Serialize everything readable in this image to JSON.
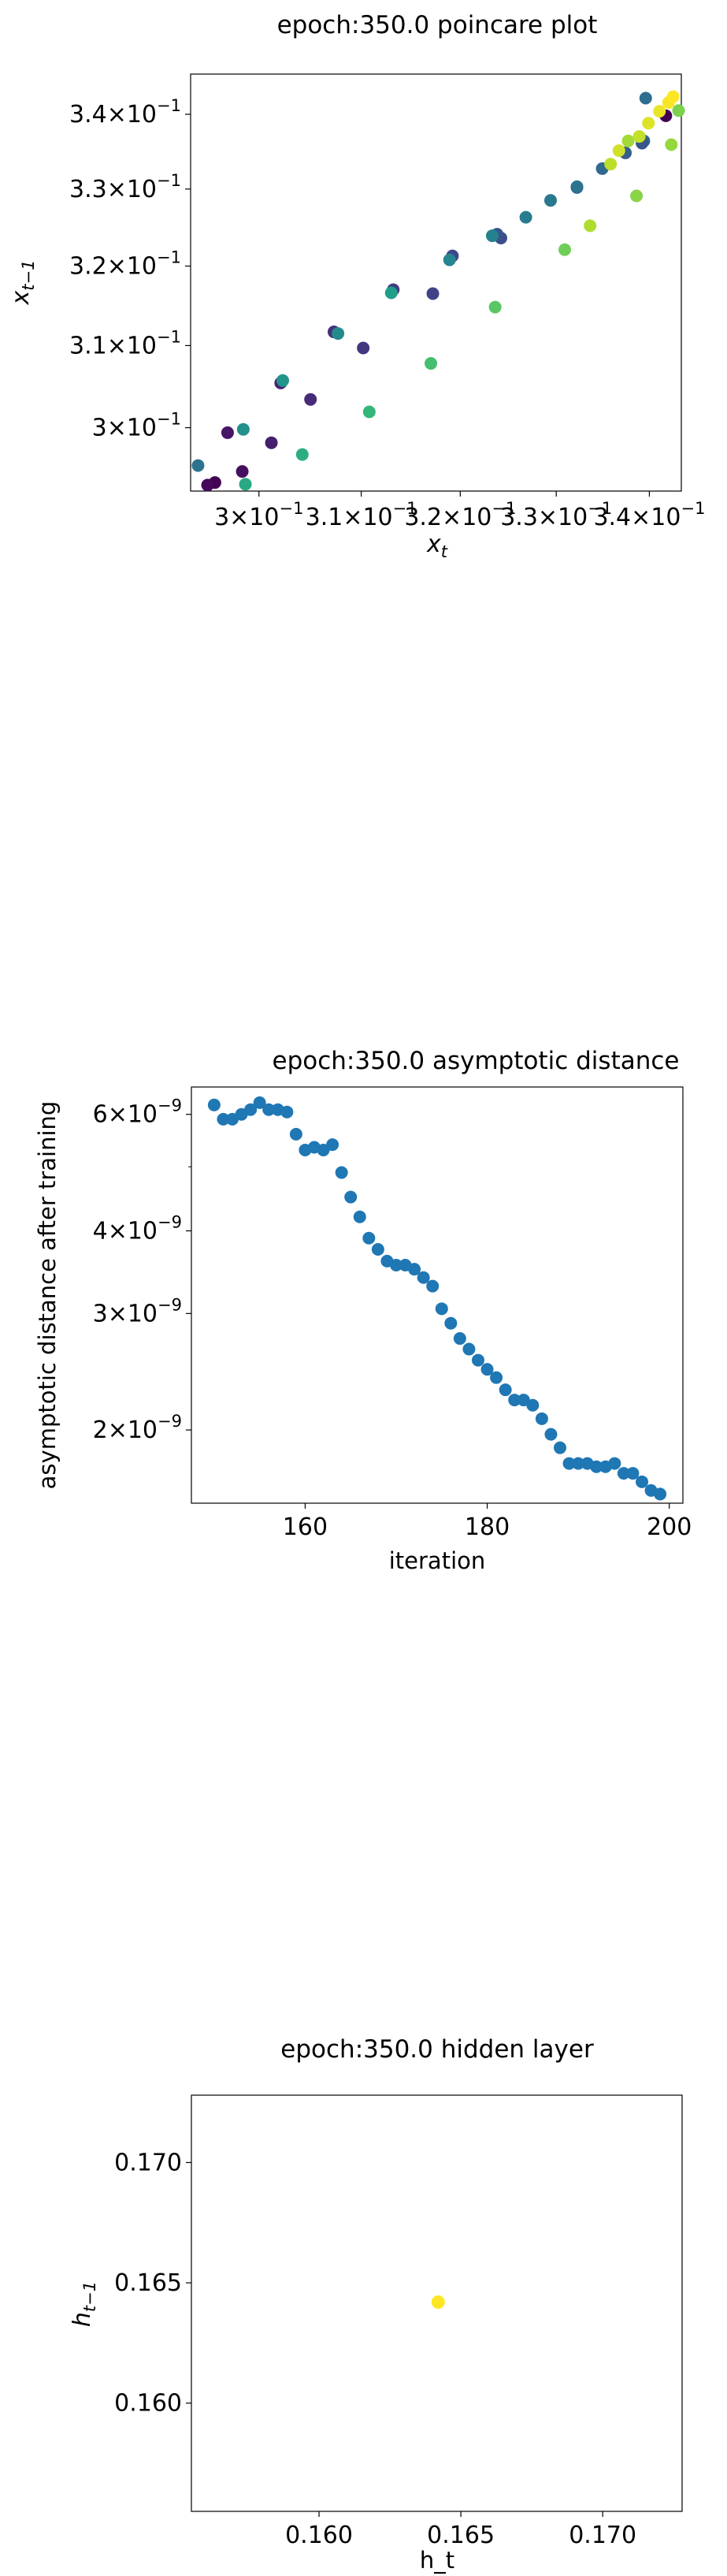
{
  "chart_data": [
    {
      "type": "scatter",
      "title": "epoch:350.0 poincare plot",
      "xlabel": "x",
      "xlabel_sub": "t",
      "ylabel": "x",
      "ylabel_sub": "t−1",
      "xscale": "log",
      "yscale": "log",
      "xlim": [
        0.2935,
        0.3435
      ],
      "ylim": [
        0.2925,
        0.3455
      ],
      "x_ticks": [
        {
          "value": 0.3,
          "mant": "3",
          "exp": "−1"
        },
        {
          "value": 0.31,
          "mant": "3.1",
          "exp": "−1"
        },
        {
          "value": 0.32,
          "mant": "3.2",
          "exp": "−1"
        },
        {
          "value": 0.33,
          "mant": "3.3",
          "exp": "−1"
        },
        {
          "value": 0.34,
          "mant": "3.4",
          "exp": "−1"
        }
      ],
      "y_ticks": [
        {
          "value": 0.3,
          "mant": "3",
          "exp": "−1"
        },
        {
          "value": 0.31,
          "mant": "3.1",
          "exp": "−1"
        },
        {
          "value": 0.32,
          "mant": "3.2",
          "exp": "−1"
        },
        {
          "value": 0.33,
          "mant": "3.3",
          "exp": "−1"
        },
        {
          "value": 0.34,
          "mant": "3.4",
          "exp": "−1"
        }
      ],
      "colormap": "viridis",
      "points": [
        {
          "x": 0.2958,
          "y": 0.2935,
          "c": 0.0
        },
        {
          "x": 0.2984,
          "y": 0.2948,
          "c": 0.04
        },
        {
          "x": 0.3012,
          "y": 0.2982,
          "c": 0.08
        },
        {
          "x": 0.305,
          "y": 0.3034,
          "c": 0.12
        },
        {
          "x": 0.3102,
          "y": 0.3097,
          "c": 0.16
        },
        {
          "x": 0.3172,
          "y": 0.3165,
          "c": 0.2
        },
        {
          "x": 0.3242,
          "y": 0.3236,
          "c": 0.24
        },
        {
          "x": 0.3322,
          "y": 0.3302,
          "c": 0.28
        },
        {
          "x": 0.3394,
          "y": 0.3364,
          "c": 0.32
        },
        {
          "x": 0.3418,
          "y": 0.3398,
          "c": 0.0
        },
        {
          "x": 0.3396,
          "y": 0.3422,
          "c": 0.36
        },
        {
          "x": 0.2942,
          "y": 0.2955,
          "c": 0.38
        },
        {
          "x": 0.2951,
          "y": 0.2932,
          "c": 0.02
        },
        {
          "x": 0.297,
          "y": 0.2994,
          "c": 0.06
        },
        {
          "x": 0.2985,
          "y": 0.2998,
          "c": 0.5
        },
        {
          "x": 0.3021,
          "y": 0.3054,
          "c": 0.1
        },
        {
          "x": 0.3023,
          "y": 0.3057,
          "c": 0.52
        },
        {
          "x": 0.3073,
          "y": 0.3117,
          "c": 0.14
        },
        {
          "x": 0.3077,
          "y": 0.3115,
          "c": 0.48
        },
        {
          "x": 0.3132,
          "y": 0.317,
          "c": 0.18
        },
        {
          "x": 0.313,
          "y": 0.3166,
          "c": 0.56
        },
        {
          "x": 0.3192,
          "y": 0.3213,
          "c": 0.22
        },
        {
          "x": 0.3189,
          "y": 0.3208,
          "c": 0.46
        },
        {
          "x": 0.3238,
          "y": 0.3241,
          "c": 0.26
        },
        {
          "x": 0.3233,
          "y": 0.3239,
          "c": 0.44
        },
        {
          "x": 0.3268,
          "y": 0.3263,
          "c": 0.42
        },
        {
          "x": 0.3294,
          "y": 0.3285,
          "c": 0.4
        },
        {
          "x": 0.3322,
          "y": 0.3303,
          "c": 0.38
        },
        {
          "x": 0.3349,
          "y": 0.3327,
          "c": 0.34
        },
        {
          "x": 0.3374,
          "y": 0.3348,
          "c": 0.3
        },
        {
          "x": 0.3392,
          "y": 0.3361,
          "c": 0.27
        },
        {
          "x": 0.2987,
          "y": 0.2933,
          "c": 0.6
        },
        {
          "x": 0.3042,
          "y": 0.2968,
          "c": 0.62
        },
        {
          "x": 0.3108,
          "y": 0.3019,
          "c": 0.66
        },
        {
          "x": 0.317,
          "y": 0.3078,
          "c": 0.7
        },
        {
          "x": 0.3236,
          "y": 0.3148,
          "c": 0.74
        },
        {
          "x": 0.3309,
          "y": 0.3221,
          "c": 0.78
        },
        {
          "x": 0.3386,
          "y": 0.3291,
          "c": 0.82
        },
        {
          "x": 0.3358,
          "y": 0.3333,
          "c": 0.9
        },
        {
          "x": 0.3367,
          "y": 0.3351,
          "c": 0.93
        },
        {
          "x": 0.3377,
          "y": 0.3364,
          "c": 0.86
        },
        {
          "x": 0.3389,
          "y": 0.337,
          "c": 0.91
        },
        {
          "x": 0.3399,
          "y": 0.3388,
          "c": 0.95
        },
        {
          "x": 0.3411,
          "y": 0.3404,
          "c": 0.97
        },
        {
          "x": 0.3421,
          "y": 0.3416,
          "c": 0.99
        },
        {
          "x": 0.3426,
          "y": 0.3424,
          "c": 1.0
        },
        {
          "x": 0.3424,
          "y": 0.3359,
          "c": 0.84
        },
        {
          "x": 0.3432,
          "y": 0.3405,
          "c": 0.8
        },
        {
          "x": 0.3336,
          "y": 0.3252,
          "c": 0.88
        }
      ]
    },
    {
      "type": "scatter",
      "title": "epoch:350.0 asymptotic distance",
      "xlabel": "iteration",
      "ylabel": "asymptotic distance after training",
      "yscale": "log",
      "xlim": [
        147.5,
        201.5
      ],
      "ylim": [
        1.55e-09,
        6.6e-09
      ],
      "x_ticks": [
        {
          "value": 160,
          "label": "160"
        },
        {
          "value": 180,
          "label": "180"
        },
        {
          "value": 200,
          "label": "200"
        }
      ],
      "y_ticks": [
        {
          "value": 2e-09,
          "mant": "2",
          "exp": "−9"
        },
        {
          "value": 3e-09,
          "mant": "3",
          "exp": "−9"
        },
        {
          "value": 4e-09,
          "mant": "4",
          "exp": "−9"
        },
        {
          "value": 6e-09,
          "mant": "6",
          "exp": "−9"
        }
      ],
      "y_minor_ticks": [
        5e-09
      ],
      "color": "#1f77b4",
      "x": [
        150,
        151,
        152,
        153,
        154,
        155,
        156,
        157,
        158,
        159,
        160,
        161,
        162,
        163,
        164,
        165,
        166,
        167,
        168,
        169,
        170,
        171,
        172,
        173,
        174,
        175,
        176,
        177,
        178,
        179,
        180,
        181,
        182,
        183,
        184,
        185,
        186,
        187,
        188,
        189,
        190,
        191,
        192,
        193,
        194,
        195,
        196,
        197,
        198,
        199
      ],
      "y": [
        6.2e-09,
        5.9e-09,
        5.9e-09,
        6e-09,
        6.1e-09,
        6.25e-09,
        6.1e-09,
        6.1e-09,
        6.05e-09,
        5.6e-09,
        5.3e-09,
        5.35e-09,
        5.3e-09,
        5.4e-09,
        4.9e-09,
        4.5e-09,
        4.2e-09,
        3.9e-09,
        3.75e-09,
        3.6e-09,
        3.55e-09,
        3.55e-09,
        3.5e-09,
        3.4e-09,
        3.3e-09,
        3.05e-09,
        2.9e-09,
        2.75e-09,
        2.65e-09,
        2.55e-09,
        2.47e-09,
        2.4e-09,
        2.3e-09,
        2.22e-09,
        2.22e-09,
        2.18e-09,
        2.08e-09,
        1.97e-09,
        1.88e-09,
        1.78e-09,
        1.78e-09,
        1.78e-09,
        1.76e-09,
        1.76e-09,
        1.78e-09,
        1.72e-09,
        1.72e-09,
        1.67e-09,
        1.62e-09,
        1.6e-09
      ]
    },
    {
      "type": "scatter",
      "title": "epoch:350.0 hidden layer",
      "xlabel": "h_t",
      "ylabel": "h",
      "ylabel_sub": "t−1",
      "xlim": [
        0.1555,
        0.1728
      ],
      "ylim": [
        0.1555,
        0.1728
      ],
      "x_ticks": [
        {
          "value": 0.16,
          "label": "0.160"
        },
        {
          "value": 0.165,
          "label": "0.165"
        },
        {
          "value": 0.17,
          "label": "0.170"
        }
      ],
      "y_ticks": [
        {
          "value": 0.16,
          "label": "0.160"
        },
        {
          "value": 0.165,
          "label": "0.165"
        },
        {
          "value": 0.17,
          "label": "0.170"
        }
      ],
      "points": [
        {
          "x": 0.1642,
          "y": 0.1642,
          "color": "#fde725"
        }
      ]
    }
  ]
}
